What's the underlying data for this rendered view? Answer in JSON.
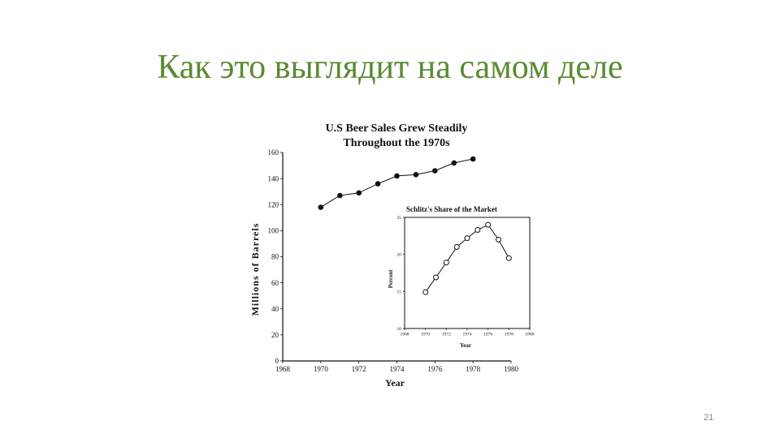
{
  "slide": {
    "title": "Как это выглядит на самом деле",
    "page_number": "21"
  },
  "colors": {
    "title": "#5a8a32",
    "ink": "#111111",
    "page_number": "#8a8a8a"
  },
  "chart_data": [
    {
      "type": "line",
      "title": "U.S Beer Sales Grew Steadily",
      "subtitle": "Throughout the 1970s",
      "xlabel": "Year",
      "ylabel": "Millions of Barrels",
      "xlim": [
        1968,
        1980
      ],
      "ylim": [
        0,
        160
      ],
      "x_ticks": [
        "1968",
        "1970",
        "1972",
        "1974",
        "1976",
        "1978",
        "1980"
      ],
      "y_ticks": [
        "0",
        "20",
        "40",
        "60",
        "80",
        "100",
        "120",
        "140",
        "160"
      ],
      "x": [
        1970,
        1971,
        1972,
        1973,
        1974,
        1975,
        1976,
        1977,
        1978
      ],
      "values": [
        118,
        127,
        129,
        136,
        142,
        143,
        146,
        152,
        155
      ],
      "marker": "filled-circle",
      "grid": false
    },
    {
      "type": "line",
      "title": "Schlitz's Share of the Market",
      "xlabel": "Year",
      "ylabel": "Percent",
      "xlim": [
        1968,
        1980
      ],
      "ylim": [
        10,
        25
      ],
      "x_ticks": [
        "1968",
        "1970",
        "1972",
        "1974",
        "1976",
        "1978",
        "1980"
      ],
      "y_ticks": [
        "10",
        "15",
        "20",
        "25"
      ],
      "x": [
        1970,
        1971,
        1972,
        1973,
        1974,
        1975,
        1976,
        1977,
        1978
      ],
      "values": [
        14.9,
        16.9,
        18.9,
        21.0,
        22.2,
        23.3,
        24.0,
        22.0,
        19.5
      ],
      "marker": "open-circle",
      "grid": false,
      "placement": "inset"
    }
  ]
}
